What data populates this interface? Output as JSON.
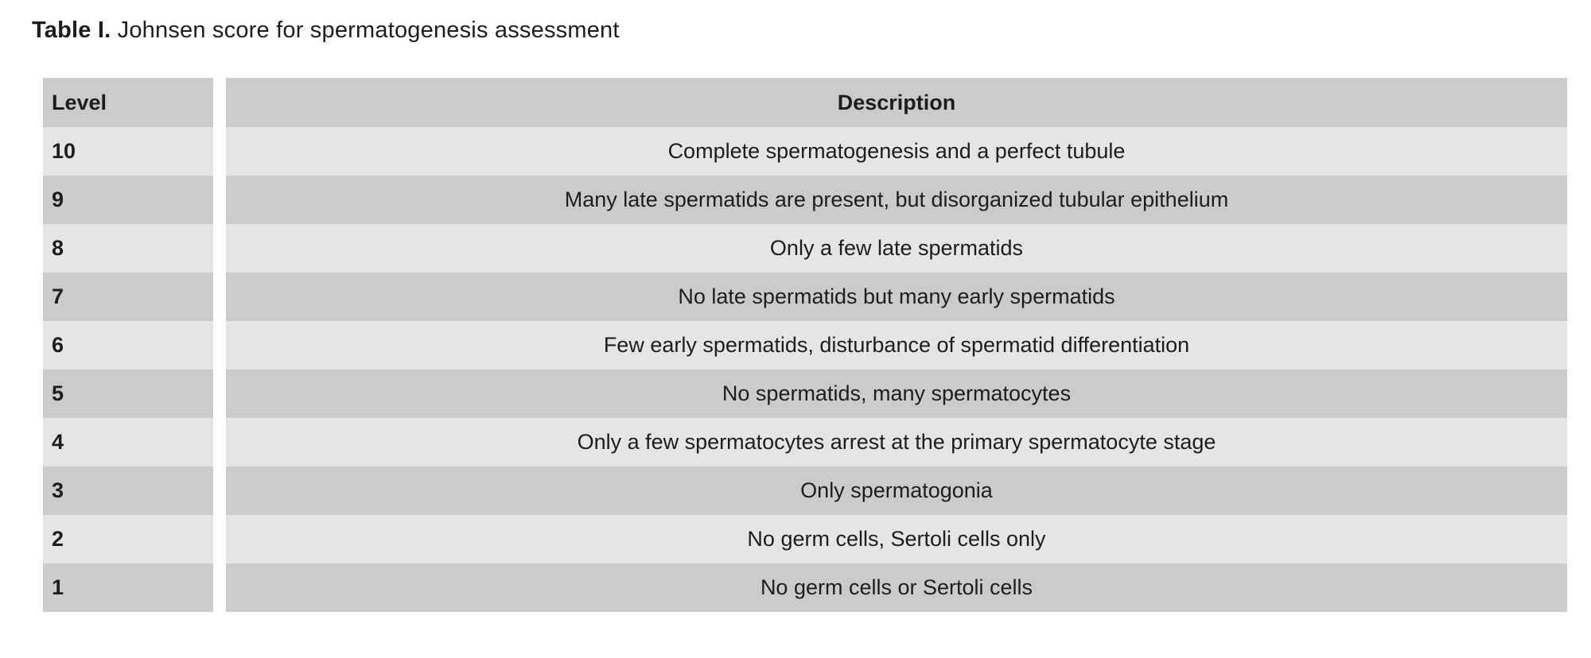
{
  "caption": {
    "label": "Table I.",
    "text": " Johnsen score for spermatogenesis assessment"
  },
  "table": {
    "headers": {
      "level": "Level",
      "description": "Description"
    },
    "rows": [
      {
        "level": "10",
        "description": "Complete spermatogenesis and a perfect tubule"
      },
      {
        "level": "9",
        "description": "Many late spermatids are present, but disorganized tubular epithelium"
      },
      {
        "level": "8",
        "description": "Only a few late spermatids"
      },
      {
        "level": "7",
        "description": "No late spermatids but many early spermatids"
      },
      {
        "level": "6",
        "description": "Few early spermatids, disturbance of spermatid differentiation"
      },
      {
        "level": "5",
        "description": "No spermatids, many spermatocytes"
      },
      {
        "level": "4",
        "description": "Only a few spermatocytes arrest at the primary spermatocyte stage"
      },
      {
        "level": "3",
        "description": "Only spermatogonia"
      },
      {
        "level": "2",
        "description": "No germ cells, Sertoli cells only"
      },
      {
        "level": "1",
        "description": "No germ cells or Sertoli cells"
      }
    ]
  },
  "colors": {
    "row_dark": "#cbcbcb",
    "row_light": "#e5e5e5",
    "text": "#1d1d1d",
    "background": "#ffffff"
  }
}
